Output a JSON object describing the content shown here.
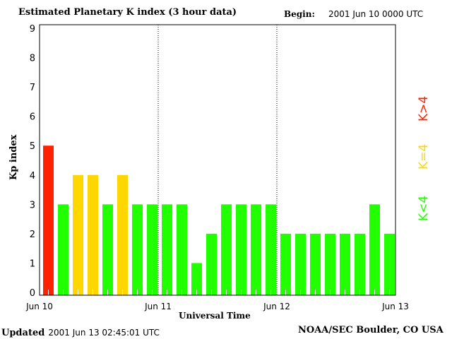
{
  "header": {
    "title": "Estimated Planetary K index (3 hour data)",
    "begin_label": "Begin:",
    "begin_value": "2001 Jun 10 0000 UTC"
  },
  "footer": {
    "updated_label": "Updated",
    "updated_value": "2001 Jun 13 02:45:01 UTC",
    "source": "NOAA/SEC Boulder, CO USA"
  },
  "legend": [
    {
      "label": "K<4",
      "color": "#22ff00"
    },
    {
      "label": "K=4",
      "color": "#ffd700"
    },
    {
      "label": "K>4",
      "color": "#ff2200"
    }
  ],
  "chart_data": {
    "type": "bar",
    "title": "Estimated Planetary K index (3 hour data)",
    "xlabel": "Universal Time",
    "ylabel": "Kp index",
    "ylim": [
      0,
      9
    ],
    "yticks": [
      "0",
      "1",
      "2",
      "3",
      "4",
      "5",
      "6",
      "7",
      "8",
      "9"
    ],
    "xticks": [
      "Jun 10",
      "Jun 11",
      "Jun 12",
      "Jun 13"
    ],
    "interval_hours": 3,
    "values": [
      5,
      3,
      4,
      4,
      3,
      4,
      3,
      3,
      3,
      3,
      1,
      2,
      3,
      3,
      3,
      3,
      2,
      2,
      2,
      2,
      2,
      2,
      3,
      2
    ],
    "colors": {
      "below4": "#22ff00",
      "equal4": "#ffd700",
      "above4": "#ff2200"
    }
  }
}
